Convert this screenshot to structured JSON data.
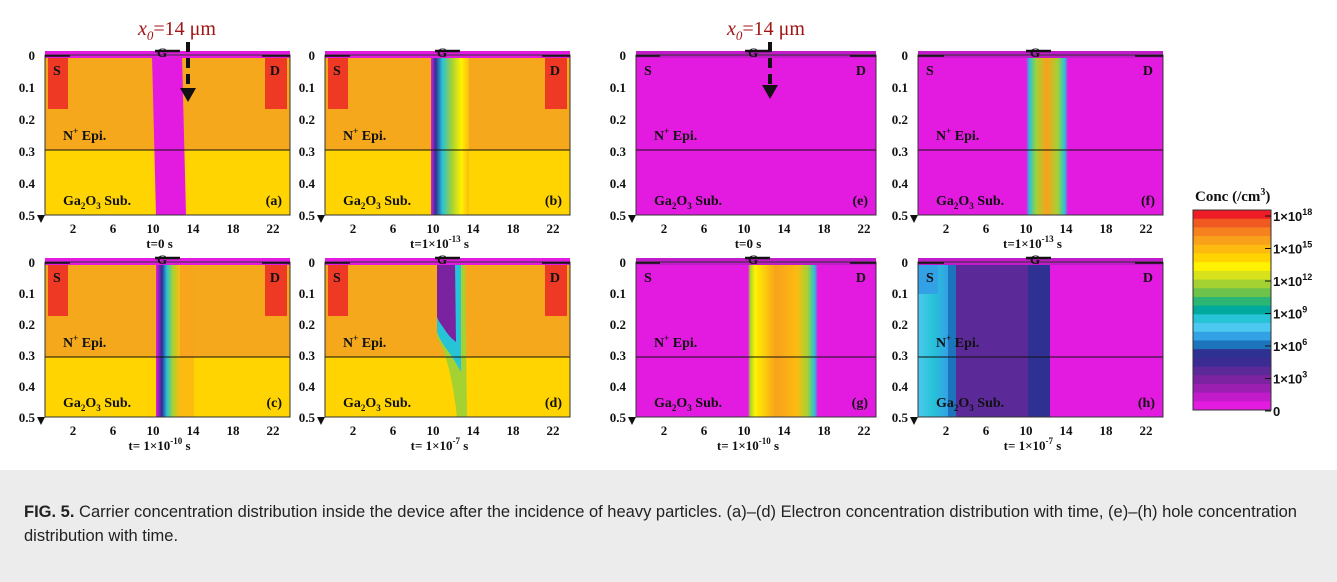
{
  "figure": {
    "arrow_label_prefix": "x",
    "arrow_label_sub": "0",
    "arrow_label_value": "=14 μm",
    "colorbar": {
      "title": "Conc (/cm",
      "title_sup": "3",
      "title_end": ")",
      "ticks": [
        {
          "base": "1×10",
          "exp": "18"
        },
        {
          "base": "1×10",
          "exp": "15"
        },
        {
          "base": "1×10",
          "exp": "12"
        },
        {
          "base": "1×10",
          "exp": "9"
        },
        {
          "base": "1×10",
          "exp": "6"
        },
        {
          "base": "1×10",
          "exp": "3"
        },
        {
          "base": "0",
          "exp": ""
        }
      ],
      "colors": [
        "#ee1c25",
        "#f05a22",
        "#f5821f",
        "#f9a11b",
        "#fdbb10",
        "#ffd400",
        "#fff200",
        "#d7e21c",
        "#a4d233",
        "#6cc24a",
        "#2bb673",
        "#00a99d",
        "#27c3d7",
        "#4cc9f0",
        "#33a1e6",
        "#1c75bc",
        "#2e3192",
        "#3b2c93",
        "#5b2a98",
        "#7b22a0",
        "#9b1fb0",
        "#c21bc9",
        "#e31ae0"
      ]
    },
    "panels": [
      {
        "id": "a",
        "label": "(a)",
        "time": "t=0 s",
        "kind": "electron"
      },
      {
        "id": "b",
        "label": "(b)",
        "time": "t=1×10",
        "time_exp": "-13",
        "time_unit": " s",
        "kind": "electron"
      },
      {
        "id": "c",
        "label": "(c)",
        "time": "t= 1×10",
        "time_exp": "-10",
        "time_unit": " s",
        "kind": "electron"
      },
      {
        "id": "d",
        "label": "(d)",
        "time": "t= 1×10",
        "time_exp": "-7",
        "time_unit": " s",
        "kind": "electron"
      },
      {
        "id": "e",
        "label": "(e)",
        "time": "t=0 s",
        "kind": "hole"
      },
      {
        "id": "f",
        "label": "(f)",
        "time": "t=1×10",
        "time_exp": "-13",
        "time_unit": " s",
        "kind": "hole"
      },
      {
        "id": "g",
        "label": "(g)",
        "time": "t= 1×10",
        "time_exp": "-10",
        "time_unit": " s",
        "kind": "hole"
      },
      {
        "id": "h",
        "label": "(h)",
        "time": "t= 1×10",
        "time_exp": "-7",
        "time_unit": " s",
        "kind": "hole"
      }
    ],
    "x_ticks": [
      "2",
      "6",
      "10",
      "14",
      "18",
      "22"
    ],
    "y_ticks": [
      "0",
      "0.1",
      "0.2",
      "0.3",
      "0.4",
      "0.5"
    ],
    "labels": {
      "source": "S",
      "drain": "D",
      "gate": "G",
      "epi": "N",
      "epi_sup": "+",
      "epi_end": " Epi.",
      "sub_prefix": "Ga",
      "sub_2": "2",
      "sub_mid": "O",
      "sub_3": "3",
      "sub_end": " Sub."
    },
    "colors": {
      "epi_orange": "#f5a81c",
      "sub_yellow": "#ffd400",
      "contact_red": "#ee3a24",
      "magenta": "#e31ae0",
      "dark_red": "#a01414"
    }
  },
  "caption": {
    "label": "FIG. 5.",
    "text": " Carrier concentration distribution inside the device after the incidence of heavy particles. (a)–(d) Electron concentration distribution with time, (e)–(h) hole concentration distribution with time."
  }
}
